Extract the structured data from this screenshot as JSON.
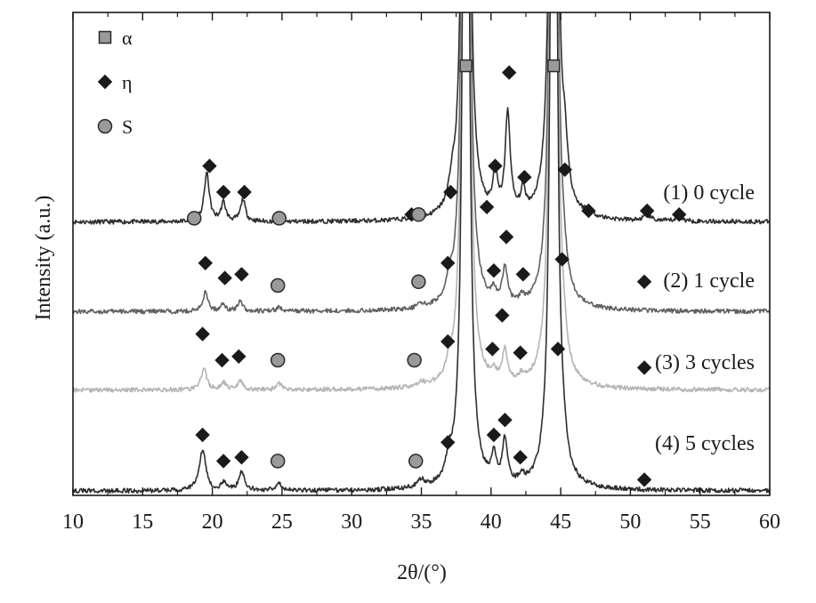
{
  "chart_data": {
    "type": "line",
    "xlabel": "2θ/(°)",
    "ylabel": "Intensity (a.u.)",
    "xlim": [
      10,
      60
    ],
    "xticks": [
      10,
      15,
      20,
      25,
      30,
      35,
      40,
      45,
      50,
      55,
      60
    ],
    "xtick_labels": [
      "10",
      "15",
      "20",
      "25",
      "30",
      "35",
      "40",
      "45",
      "50",
      "55",
      "60"
    ],
    "grid": false,
    "legend_position": "top-left",
    "legend": [
      {
        "label": "α",
        "marker": "square",
        "color": "#9a9a9a"
      },
      {
        "label": "η",
        "marker": "diamond",
        "color": "#1a1a1a"
      },
      {
        "label": "S",
        "marker": "circle",
        "color": "#9a9a9a"
      }
    ],
    "dominant_peaks": [
      {
        "phase": "α",
        "x": 38.2
      },
      {
        "phase": "α",
        "x": 44.5
      }
    ],
    "series": [
      {
        "name": "(1) 0 cycle",
        "color": "#2e2e2e",
        "baseline": 0.72,
        "peaks": [
          {
            "x": 19.6,
            "h": 0.13,
            "w": 0.22
          },
          {
            "x": 20.8,
            "h": 0.05,
            "w": 0.2
          },
          {
            "x": 22.2,
            "h": 0.06,
            "w": 0.2
          },
          {
            "x": 37.2,
            "h": 0.05,
            "w": 0.25
          },
          {
            "x": 40.3,
            "h": 0.11,
            "w": 0.18
          },
          {
            "x": 41.2,
            "h": 0.27,
            "w": 0.22
          },
          {
            "x": 42.3,
            "h": 0.06,
            "w": 0.2
          },
          {
            "x": 45.3,
            "h": 0.12,
            "w": 0.25
          },
          {
            "x": 47.0,
            "h": 0.015,
            "w": 0.3
          },
          {
            "x": 51.2,
            "h": 0.015,
            "w": 0.3
          },
          {
            "x": 53.5,
            "h": 0.01,
            "w": 0.3
          }
        ],
        "markers": [
          {
            "phase": "S",
            "x": 18.7,
            "y": 0.73
          },
          {
            "phase": "η",
            "x": 19.8,
            "y": 0.87
          },
          {
            "phase": "η",
            "x": 20.8,
            "y": 0.8
          },
          {
            "phase": "η",
            "x": 22.3,
            "y": 0.8
          },
          {
            "phase": "S",
            "x": 24.8,
            "y": 0.73
          },
          {
            "phase": "η",
            "x": 34.3,
            "y": 0.74
          },
          {
            "phase": "S",
            "x": 34.8,
            "y": 0.74
          },
          {
            "phase": "η",
            "x": 37.1,
            "y": 0.8
          },
          {
            "phase": "η",
            "x": 39.7,
            "y": 0.76
          },
          {
            "phase": "η",
            "x": 40.3,
            "y": 0.87
          },
          {
            "phase": "η",
            "x": 41.3,
            "y": 1.12
          },
          {
            "phase": "η",
            "x": 42.4,
            "y": 0.84
          },
          {
            "phase": "η",
            "x": 45.3,
            "y": 0.86
          },
          {
            "phase": "η",
            "x": 47.0,
            "y": 0.75
          },
          {
            "phase": "η",
            "x": 51.2,
            "y": 0.75
          },
          {
            "phase": "η",
            "x": 53.5,
            "y": 0.74
          }
        ]
      },
      {
        "name": "(2) 1 cycle",
        "color": "#606060",
        "baseline": 0.48,
        "peaks": [
          {
            "x": 19.5,
            "h": 0.05,
            "w": 0.22
          },
          {
            "x": 20.8,
            "h": 0.02,
            "w": 0.2
          },
          {
            "x": 22.0,
            "h": 0.03,
            "w": 0.2
          },
          {
            "x": 24.8,
            "h": 0.01,
            "w": 0.25
          },
          {
            "x": 35.0,
            "h": 0.01,
            "w": 0.25
          },
          {
            "x": 37.0,
            "h": 0.04,
            "w": 0.25
          },
          {
            "x": 40.2,
            "h": 0.03,
            "w": 0.2
          },
          {
            "x": 41.0,
            "h": 0.1,
            "w": 0.22
          },
          {
            "x": 42.2,
            "h": 0.02,
            "w": 0.2
          },
          {
            "x": 45.2,
            "h": 0.05,
            "w": 0.25
          }
        ],
        "markers": [
          {
            "phase": "η",
            "x": 19.5,
            "y": 0.61
          },
          {
            "phase": "η",
            "x": 20.9,
            "y": 0.57
          },
          {
            "phase": "η",
            "x": 22.1,
            "y": 0.58
          },
          {
            "phase": "S",
            "x": 24.7,
            "y": 0.55
          },
          {
            "phase": "S",
            "x": 34.8,
            "y": 0.56
          },
          {
            "phase": "η",
            "x": 36.9,
            "y": 0.61
          },
          {
            "phase": "η",
            "x": 40.2,
            "y": 0.59
          },
          {
            "phase": "η",
            "x": 41.1,
            "y": 0.68
          },
          {
            "phase": "η",
            "x": 42.3,
            "y": 0.58
          },
          {
            "phase": "η",
            "x": 45.1,
            "y": 0.62
          },
          {
            "phase": "η",
            "x": 51.0,
            "y": 0.56
          }
        ]
      },
      {
        "name": "(3) 3 cycles",
        "color": "#b4b4b4",
        "baseline": 0.27,
        "peaks": [
          {
            "x": 19.4,
            "h": 0.06,
            "w": 0.22
          },
          {
            "x": 20.8,
            "h": 0.02,
            "w": 0.2
          },
          {
            "x": 22.0,
            "h": 0.025,
            "w": 0.2
          },
          {
            "x": 24.8,
            "h": 0.015,
            "w": 0.25
          },
          {
            "x": 35.0,
            "h": 0.012,
            "w": 0.25
          },
          {
            "x": 37.0,
            "h": 0.03,
            "w": 0.25
          },
          {
            "x": 40.2,
            "h": 0.025,
            "w": 0.2
          },
          {
            "x": 41.0,
            "h": 0.09,
            "w": 0.22
          },
          {
            "x": 42.2,
            "h": 0.02,
            "w": 0.2
          },
          {
            "x": 45.2,
            "h": 0.05,
            "w": 0.25
          }
        ],
        "markers": [
          {
            "phase": "η",
            "x": 19.3,
            "y": 0.42
          },
          {
            "phase": "η",
            "x": 20.7,
            "y": 0.35
          },
          {
            "phase": "η",
            "x": 21.9,
            "y": 0.36
          },
          {
            "phase": "S",
            "x": 24.7,
            "y": 0.35
          },
          {
            "phase": "S",
            "x": 34.5,
            "y": 0.35
          },
          {
            "phase": "η",
            "x": 36.9,
            "y": 0.4
          },
          {
            "phase": "η",
            "x": 40.1,
            "y": 0.38
          },
          {
            "phase": "η",
            "x": 40.8,
            "y": 0.47
          },
          {
            "phase": "η",
            "x": 42.1,
            "y": 0.37
          },
          {
            "phase": "η",
            "x": 44.8,
            "y": 0.38
          },
          {
            "phase": "η",
            "x": 51.0,
            "y": 0.33
          }
        ]
      },
      {
        "name": "(4) 5 cycles",
        "color": "#2e2e2e",
        "baseline": 0.0,
        "peaks": [
          {
            "x": 19.3,
            "h": 0.11,
            "w": 0.28
          },
          {
            "x": 20.8,
            "h": 0.02,
            "w": 0.2
          },
          {
            "x": 22.1,
            "h": 0.05,
            "w": 0.25
          },
          {
            "x": 24.8,
            "h": 0.02,
            "w": 0.25
          },
          {
            "x": 35.0,
            "h": 0.02,
            "w": 0.25
          },
          {
            "x": 37.0,
            "h": 0.05,
            "w": 0.25
          },
          {
            "x": 40.2,
            "h": 0.07,
            "w": 0.2
          },
          {
            "x": 41.0,
            "h": 0.12,
            "w": 0.22
          },
          {
            "x": 42.2,
            "h": 0.02,
            "w": 0.2
          },
          {
            "x": 45.2,
            "h": 0.04,
            "w": 0.25
          }
        ],
        "markers": [
          {
            "phase": "η",
            "x": 19.3,
            "y": 0.15
          },
          {
            "phase": "η",
            "x": 20.8,
            "y": 0.08
          },
          {
            "phase": "η",
            "x": 22.1,
            "y": 0.09
          },
          {
            "phase": "S",
            "x": 24.7,
            "y": 0.08
          },
          {
            "phase": "S",
            "x": 34.6,
            "y": 0.08
          },
          {
            "phase": "η",
            "x": 36.9,
            "y": 0.13
          },
          {
            "phase": "η",
            "x": 40.2,
            "y": 0.15
          },
          {
            "phase": "η",
            "x": 41.0,
            "y": 0.19
          },
          {
            "phase": "η",
            "x": 42.1,
            "y": 0.09
          },
          {
            "phase": "η",
            "x": 51.0,
            "y": 0.03
          }
        ]
      }
    ]
  }
}
